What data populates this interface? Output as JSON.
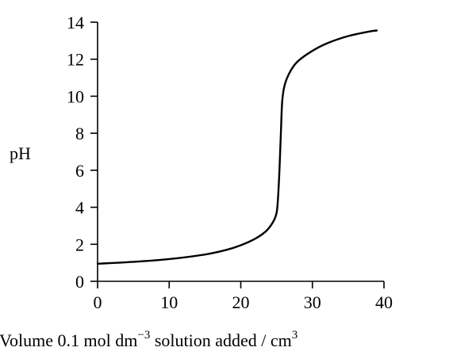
{
  "chart_data": {
    "type": "line",
    "xlabel": {
      "prefix": "Volume 0.1 mol dm",
      "exp1": "−3",
      "middle": " solution added / cm",
      "exp2": "3"
    },
    "ylabel": "pH",
    "xlim": [
      0,
      40
    ],
    "ylim": [
      0,
      14
    ],
    "x_ticks": [
      0,
      10,
      20,
      30,
      40
    ],
    "y_ticks": [
      0,
      2,
      4,
      6,
      8,
      10,
      12,
      14
    ],
    "grid": false,
    "series": [
      {
        "x": [
          0,
          5,
          10,
          15,
          18,
          20,
          22,
          23.5,
          24.5,
          25,
          25.2,
          25.4,
          25.6,
          25.8,
          26.2,
          27,
          28,
          30,
          32,
          35,
          38,
          39
        ],
        "y": [
          0.95,
          1.05,
          1.2,
          1.45,
          1.7,
          1.95,
          2.3,
          2.7,
          3.2,
          3.7,
          4.5,
          6.0,
          8.0,
          9.8,
          10.7,
          11.4,
          11.9,
          12.45,
          12.85,
          13.25,
          13.5,
          13.55
        ]
      }
    ]
  }
}
